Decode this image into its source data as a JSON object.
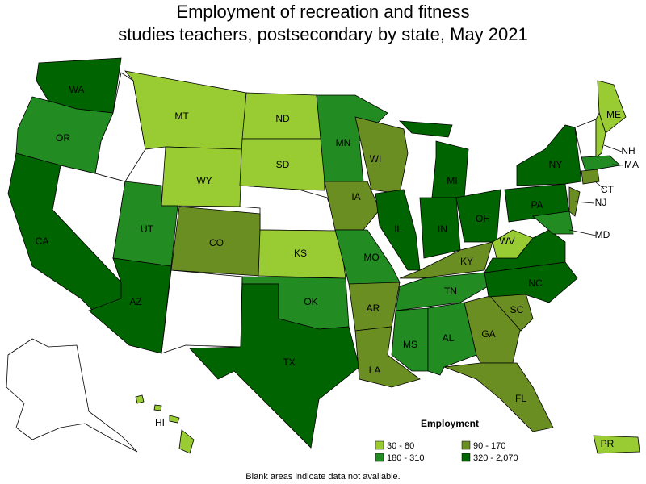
{
  "title": [
    "Employment of recreation and fitness",
    "studies teachers, postsecondary by state, May 2021"
  ],
  "legend": {
    "title": "Employment",
    "items": [
      {
        "label": "30 - 80",
        "color": "#99cc33"
      },
      {
        "label": "180 - 310",
        "color": "#228b22"
      },
      {
        "label": "90 - 170",
        "color": "#6b8e23"
      },
      {
        "label": "320 - 2,070",
        "color": "#006400"
      }
    ]
  },
  "states": [
    {
      "label": "WA",
      "class": 3
    },
    {
      "label": "OR",
      "class": 1
    },
    {
      "label": "CA",
      "class": 3
    },
    {
      "label": "MT",
      "class": 0
    },
    {
      "label": "WY",
      "class": 0
    },
    {
      "label": "UT",
      "class": 1
    },
    {
      "label": "AZ",
      "class": 3
    },
    {
      "label": "CO",
      "class": 2
    },
    {
      "label": "ND",
      "class": 0
    },
    {
      "label": "SD",
      "class": 0
    },
    {
      "label": "KS",
      "class": 0
    },
    {
      "label": "OK",
      "class": 1
    },
    {
      "label": "TX",
      "class": 3
    },
    {
      "label": "MN",
      "class": 1
    },
    {
      "label": "IA",
      "class": 2
    },
    {
      "label": "MO",
      "class": 1
    },
    {
      "label": "AR",
      "class": 2
    },
    {
      "label": "LA",
      "class": 2
    },
    {
      "label": "WI",
      "class": 2
    },
    {
      "label": "IL",
      "class": 3
    },
    {
      "label": "MI",
      "class": 3
    },
    {
      "label": "IN",
      "class": 3
    },
    {
      "label": "OH",
      "class": 3
    },
    {
      "label": "KY",
      "class": 2
    },
    {
      "label": "TN",
      "class": 1
    },
    {
      "label": "MS",
      "class": 1
    },
    {
      "label": "AL",
      "class": 1
    },
    {
      "label": "GA",
      "class": 2
    },
    {
      "label": "FL",
      "class": 2
    },
    {
      "label": "SC",
      "class": 2
    },
    {
      "label": "NC",
      "class": 3
    },
    {
      "label": null,
      "class": 3
    },
    {
      "label": "WV",
      "class": 0
    },
    {
      "label": "PA",
      "class": 3
    },
    {
      "label": "NY",
      "class": 3
    },
    {
      "label": "ME",
      "class": 0
    },
    {
      "label": "NH",
      "class": 0
    },
    {
      "label": "MA",
      "class": 1
    },
    {
      "label": "CT",
      "class": 2
    },
    {
      "label": "NJ",
      "class": 2
    },
    {
      "label": "MD",
      "class": 1
    },
    {
      "label": "HI",
      "class": 0
    },
    {
      "label": "PR",
      "class": 0
    }
  ],
  "note": "Blank areas indicate data not available."
}
